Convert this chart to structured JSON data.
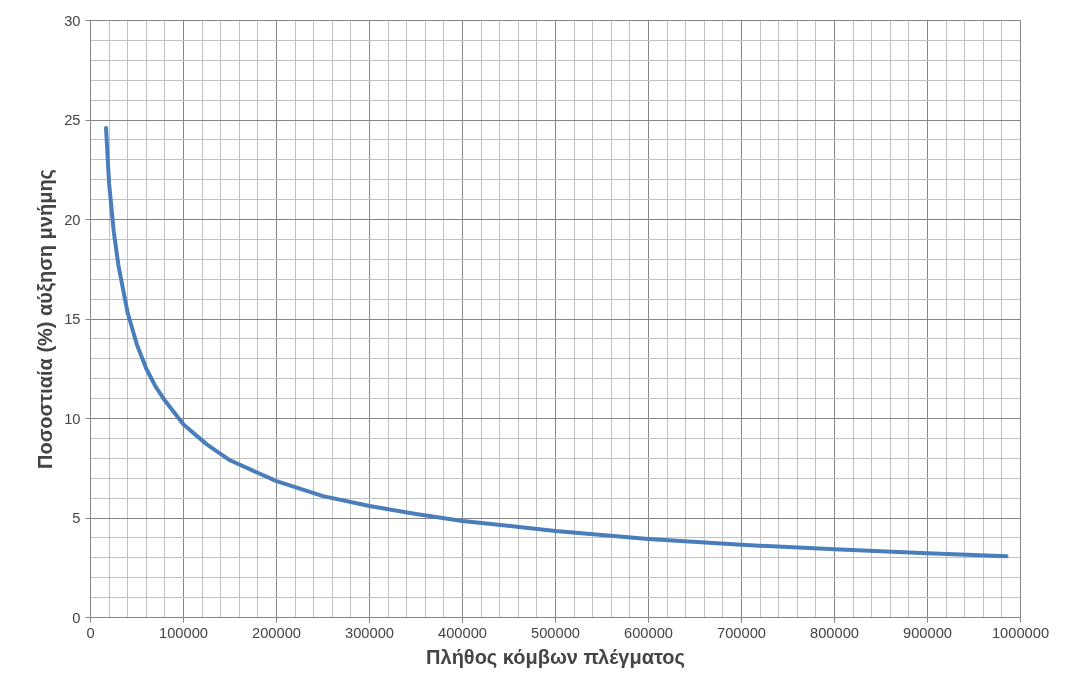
{
  "chart_data": {
    "type": "line",
    "xlabel": "Πλήθος κόμβων πλέγματος",
    "ylabel": "Ποσοστιαία (%) αύξηση μνήμης",
    "x": [
      16700,
      20000,
      25000,
      30000,
      40000,
      50000,
      60000,
      70000,
      80000,
      100000,
      125000,
      150000,
      200000,
      250000,
      300000,
      350000,
      400000,
      500000,
      600000,
      700000,
      800000,
      900000,
      985000
    ],
    "series": [
      {
        "color": "#4a7ebb",
        "values": [
          24.6,
          21.8,
          19.4,
          17.7,
          15.3,
          13.7,
          12.5,
          11.6,
          10.9,
          9.7,
          8.7,
          7.9,
          6.85,
          6.1,
          5.6,
          5.2,
          4.85,
          4.35,
          3.95,
          3.65,
          3.43,
          3.23,
          3.08
        ]
      }
    ],
    "xlim": [
      0,
      1000000
    ],
    "ylim": [
      0,
      30
    ],
    "xticks": [
      0,
      100000,
      200000,
      300000,
      400000,
      500000,
      600000,
      700000,
      800000,
      900000,
      1000000
    ],
    "yticks": [
      0,
      5,
      10,
      15,
      20,
      25,
      30
    ],
    "grid": true,
    "marker": "none",
    "line_style": "solid"
  }
}
